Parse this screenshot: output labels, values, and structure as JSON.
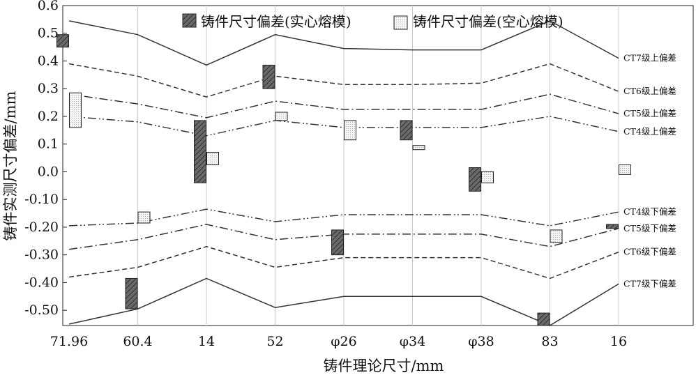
{
  "chart_data": {
    "type": "bar",
    "title": "",
    "xlabel": "铸件理论尺寸/mm",
    "ylabel": "铸件实测尺寸偏差/mm",
    "ylim": [
      -0.555,
      0.6
    ],
    "y_ticks": [
      {
        "value": 0.6,
        "label": "0.6"
      },
      {
        "value": 0.5,
        "label": "0.5"
      },
      {
        "value": 0.4,
        "label": "0.4"
      },
      {
        "value": 0.3,
        "label": "0.3"
      },
      {
        "value": 0.2,
        "label": "0.2"
      },
      {
        "value": 0.1,
        "label": "0.1"
      },
      {
        "value": 0.0,
        "label": "0.0"
      },
      {
        "value": -0.1,
        "label": "-0.10"
      },
      {
        "value": -0.2,
        "label": "-0.20"
      },
      {
        "value": -0.3,
        "label": "-0.30"
      },
      {
        "value": -0.4,
        "label": "-0.40"
      },
      {
        "value": -0.5,
        "label": "-0.50"
      }
    ],
    "categories": [
      "71.96",
      "60.4",
      "14",
      "52",
      "φ26",
      "φ34",
      "φ38",
      "83",
      "16"
    ],
    "grid": "vertical",
    "legend_position": "top",
    "series": [
      {
        "name": "铸件尺寸偏差(实心熔模)",
        "kind": "floating-bar",
        "color": "#555555",
        "pattern": "hatched",
        "ranges": [
          [
            0.45,
            0.495
          ],
          [
            -0.495,
            -0.385
          ],
          [
            -0.04,
            0.185
          ],
          [
            0.3,
            0.385
          ],
          [
            -0.3,
            -0.21
          ],
          [
            0.115,
            0.185
          ],
          [
            -0.07,
            0.015
          ],
          [
            -0.555,
            -0.51
          ],
          [
            -0.205,
            -0.19
          ]
        ]
      },
      {
        "name": "铸件尺寸偏差(空心熔模)",
        "kind": "floating-bar",
        "color": "#f2f2f2",
        "pattern": "dotted",
        "ranges": [
          [
            0.16,
            0.285
          ],
          [
            -0.185,
            -0.145
          ],
          [
            0.025,
            0.07
          ],
          [
            0.185,
            0.215
          ],
          [
            0.115,
            0.185
          ],
          [
            0.08,
            0.095
          ],
          [
            -0.04,
            0.0
          ],
          [
            -0.255,
            -0.21
          ],
          [
            -0.01,
            0.025
          ]
        ]
      }
    ],
    "tolerance_lines": [
      {
        "label": "CT7级上偏差",
        "style": "solid",
        "values": [
          0.545,
          0.495,
          0.385,
          0.495,
          0.445,
          0.44,
          0.44,
          0.545,
          0.41
        ]
      },
      {
        "label": "CT6级上偏差",
        "style": "dashed",
        "values": [
          0.39,
          0.345,
          0.27,
          0.345,
          0.315,
          0.315,
          0.32,
          0.39,
          0.29
        ]
      },
      {
        "label": "CT5级上偏差",
        "style": "dashdot",
        "values": [
          0.28,
          0.245,
          0.195,
          0.255,
          0.225,
          0.225,
          0.225,
          0.28,
          0.21
        ]
      },
      {
        "label": "CT4级上偏差",
        "style": "dashdotdot",
        "values": [
          0.2,
          0.18,
          0.13,
          0.185,
          0.16,
          0.16,
          0.16,
          0.2,
          0.145
        ]
      },
      {
        "label": "CT4级下偏差",
        "style": "dashdotdot",
        "values": [
          -0.195,
          -0.185,
          -0.135,
          -0.18,
          -0.155,
          -0.155,
          -0.155,
          -0.195,
          -0.145
        ]
      },
      {
        "label": "CT5级下偏差",
        "style": "dashdot",
        "values": [
          -0.28,
          -0.245,
          -0.19,
          -0.245,
          -0.225,
          -0.225,
          -0.225,
          -0.27,
          -0.205
        ]
      },
      {
        "label": "CT6级下偏差",
        "style": "dashed",
        "values": [
          -0.38,
          -0.345,
          -0.27,
          -0.345,
          -0.31,
          -0.31,
          -0.31,
          -0.385,
          -0.29
        ]
      },
      {
        "label": "CT7级下偏差",
        "style": "solid",
        "values": [
          -0.55,
          -0.495,
          -0.385,
          -0.49,
          -0.45,
          -0.45,
          -0.45,
          -0.555,
          -0.405
        ]
      }
    ]
  }
}
